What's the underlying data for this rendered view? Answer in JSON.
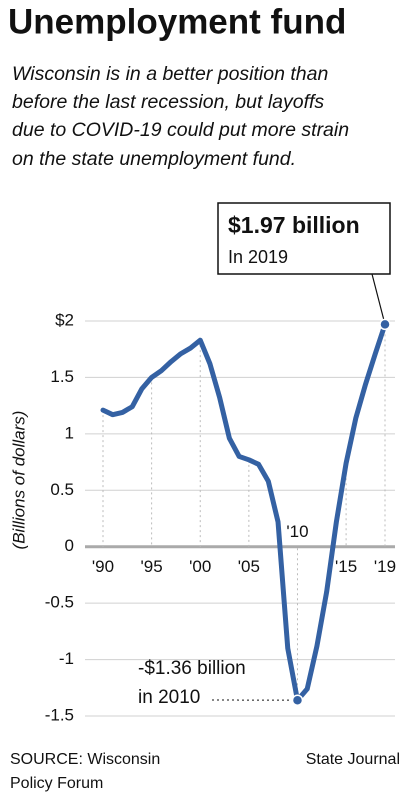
{
  "chart_data": {
    "type": "line",
    "title": "Unemployment fund",
    "subtitle": [
      "Wisconsin is in a better position than",
      "before the last recession, but layoffs",
      "due to COVID-19 could put more strain",
      "on the state unemployment fund."
    ],
    "y_label": "(Billions of dollars)",
    "x": [
      1990,
      1991,
      1992,
      1993,
      1994,
      1995,
      1996,
      1997,
      1998,
      1999,
      2000,
      2001,
      2002,
      2003,
      2004,
      2005,
      2006,
      2007,
      2008,
      2009,
      2010,
      2011,
      2012,
      2013,
      2014,
      2015,
      2016,
      2017,
      2018,
      2019
    ],
    "values": [
      1.21,
      1.17,
      1.19,
      1.24,
      1.4,
      1.5,
      1.56,
      1.64,
      1.71,
      1.76,
      1.83,
      1.62,
      1.32,
      0.96,
      0.8,
      0.77,
      0.73,
      0.58,
      0.22,
      -0.9,
      -1.36,
      -1.26,
      -0.88,
      -0.4,
      0.22,
      0.74,
      1.14,
      1.44,
      1.71,
      1.97
    ],
    "color": "#3461a3",
    "xlim": [
      1990,
      2019
    ],
    "xticks": [
      {
        "value": 1990,
        "label": "'90"
      },
      {
        "value": 1995,
        "label": "'95"
      },
      {
        "value": 2000,
        "label": "'00"
      },
      {
        "value": 2005,
        "label": "'05"
      },
      {
        "value": 2010,
        "label": "'10"
      },
      {
        "value": 2015,
        "label": "'15"
      },
      {
        "value": 2019,
        "label": "'19"
      }
    ],
    "ylim": [
      -1.5,
      2
    ],
    "yticks": [
      {
        "value": 2,
        "label": "$2"
      },
      1.5,
      1,
      0.5,
      0,
      -0.5,
      -1,
      -1.5
    ],
    "grid": true,
    "callout": {
      "title": "$1.97 billion",
      "text": "In 2019",
      "x": 2019
    },
    "low_label": {
      "lines": [
        "-$1.36 billion",
        "in 2010"
      ],
      "x": 2010
    },
    "source": [
      "SOURCE: Wisconsin",
      "Policy Forum"
    ],
    "credit": "State Journal"
  }
}
